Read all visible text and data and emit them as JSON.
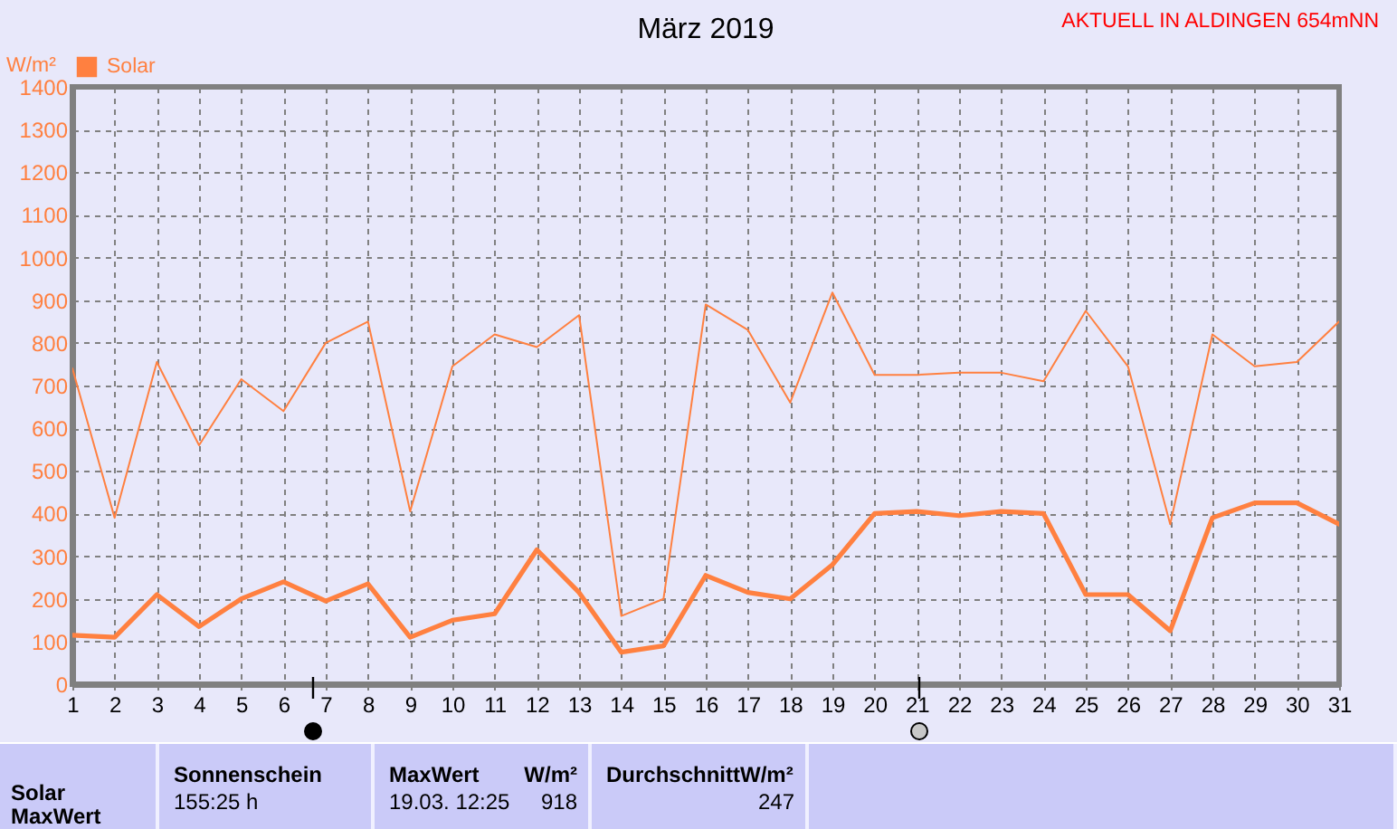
{
  "chart_data": {
    "type": "line",
    "title": "März 2019",
    "subtitle": "AKTUELL IN ALDINGEN 654mNN",
    "ylabel": "W/m²",
    "x": [
      1,
      2,
      3,
      4,
      5,
      6,
      7,
      8,
      9,
      10,
      11,
      12,
      13,
      14,
      15,
      16,
      17,
      18,
      19,
      20,
      21,
      22,
      23,
      24,
      25,
      26,
      27,
      28,
      29,
      30,
      31
    ],
    "xlim": [
      1,
      31
    ],
    "xticks": [
      1,
      2,
      3,
      4,
      5,
      6,
      7,
      8,
      9,
      10,
      11,
      12,
      13,
      14,
      15,
      16,
      17,
      18,
      19,
      20,
      21,
      22,
      23,
      24,
      25,
      26,
      27,
      28,
      29,
      30,
      31
    ],
    "ylim": [
      0,
      1400
    ],
    "yticks": [
      0,
      100,
      200,
      300,
      400,
      500,
      600,
      700,
      800,
      900,
      1000,
      1100,
      1200,
      1300,
      1400
    ],
    "grid": true,
    "legend": "top left",
    "line_style": "solid",
    "series": [
      {
        "name": "Solar",
        "color": "#ff8040",
        "values": [
          740,
          390,
          755,
          560,
          715,
          640,
          800,
          850,
          405,
          745,
          820,
          790,
          865,
          160,
          200,
          890,
          830,
          660,
          918,
          725,
          725,
          730,
          730,
          710,
          875,
          745,
          375,
          820,
          745,
          755,
          850
        ]
      },
      {
        "color": "#ff8040",
        "values": [
          115,
          110,
          210,
          135,
          200,
          240,
          195,
          235,
          110,
          150,
          165,
          315,
          215,
          75,
          90,
          255,
          215,
          200,
          280,
          400,
          405,
          395,
          405,
          400,
          210,
          210,
          125,
          390,
          425,
          425,
          375
        ]
      }
    ],
    "annotations": [
      "Solar",
      "MaxWert",
      "Sonnenschein",
      "155:25 h",
      "MaxWert",
      "W/m²",
      "19.03.  12:25",
      "918",
      "DurchschnittW/m²",
      "247"
    ]
  }
}
